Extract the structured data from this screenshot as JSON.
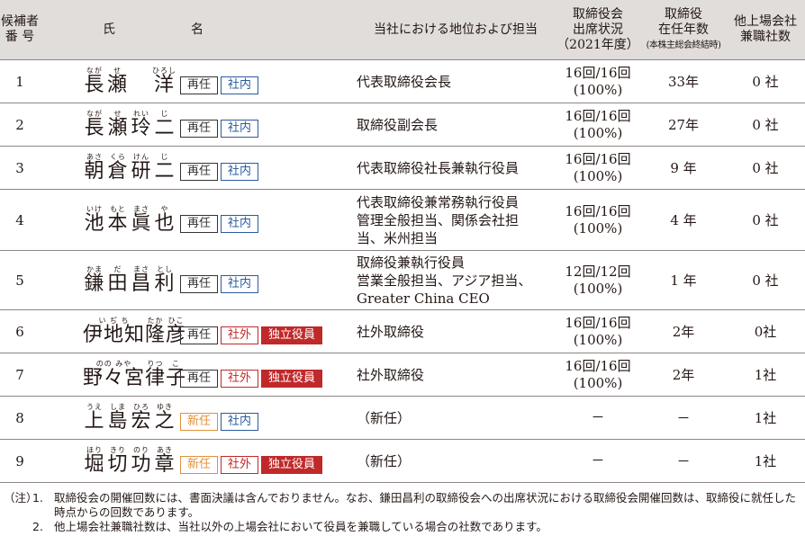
{
  "header": {
    "candidate_no": "候補者\n番 号",
    "name": "氏　　　　　　名",
    "position": "当社における地位および担当",
    "attendance_line1": "取締役会",
    "attendance_line2": "出席状況",
    "attendance_line3": "（2021年度）",
    "tenure_line1": "取締役",
    "tenure_line2": "在任年数",
    "tenure_line3": "(本株主総会終結時)",
    "other_line1": "他上場会社",
    "other_line2": "兼職社数"
  },
  "rows": [
    {
      "no": "1",
      "name": [
        {
          "r": "なが",
          "k": "長"
        },
        {
          "r": "せ",
          "k": "瀬"
        },
        {
          "r": "",
          "k": ""
        },
        {
          "r": "ひろし",
          "k": "洋"
        }
      ],
      "tags": [
        [
          "再任",
          "saigin"
        ],
        [
          "社内",
          "shanai"
        ]
      ],
      "position": "代表取締役会長",
      "att1": "16回/16回",
      "att2": "(100%)",
      "tenure": "33年",
      "other": "0 社"
    },
    {
      "no": "2",
      "name": [
        {
          "r": "なが",
          "k": "長"
        },
        {
          "r": "せ",
          "k": "瀬"
        },
        {
          "r": "れい",
          "k": "玲"
        },
        {
          "r": "じ",
          "k": "二"
        }
      ],
      "tags": [
        [
          "再任",
          "saigin"
        ],
        [
          "社内",
          "shanai"
        ]
      ],
      "position": "取締役副会長",
      "att1": "16回/16回",
      "att2": "(100%)",
      "tenure": "27年",
      "other": "0 社"
    },
    {
      "no": "3",
      "name": [
        {
          "r": "あさ",
          "k": "朝"
        },
        {
          "r": "くら",
          "k": "倉"
        },
        {
          "r": "けん",
          "k": "研"
        },
        {
          "r": "じ",
          "k": "二"
        }
      ],
      "tags": [
        [
          "再任",
          "saigin"
        ],
        [
          "社内",
          "shanai"
        ]
      ],
      "position": "代表取締役社長兼執行役員",
      "att1": "16回/16回",
      "att2": "(100%)",
      "tenure": "9 年",
      "other": "0 社"
    },
    {
      "no": "4",
      "name": [
        {
          "r": "いけ",
          "k": "池"
        },
        {
          "r": "もと",
          "k": "本"
        },
        {
          "r": "まさ",
          "k": "眞"
        },
        {
          "r": "や",
          "k": "也"
        }
      ],
      "tags": [
        [
          "再任",
          "saigin"
        ],
        [
          "社内",
          "shanai"
        ]
      ],
      "position": "代表取締役兼常務執行役員\n管理全般担当、関係会社担\n当、米州担当",
      "att1": "16回/16回",
      "att2": "(100%)",
      "tenure": "4 年",
      "other": "0 社"
    },
    {
      "no": "5",
      "name": [
        {
          "r": "かま",
          "k": "鎌"
        },
        {
          "r": "だ",
          "k": "田"
        },
        {
          "r": "まさ",
          "k": "昌"
        },
        {
          "r": "とし",
          "k": "利"
        }
      ],
      "tags": [
        [
          "再任",
          "saigin"
        ],
        [
          "社内",
          "shanai"
        ]
      ],
      "position": "取締役兼執行役員\n営業全般担当、アジア担当、\nGreater China CEO",
      "att1": "12回/12回",
      "att2": "(100%)",
      "tenure": "1 年",
      "other": "0 社"
    },
    {
      "no": "6",
      "name": [
        {
          "r": "い ぢ ち",
          "k": "伊地知",
          "wide": true
        },
        {
          "r": "たか",
          "k": "隆"
        },
        {
          "r": "ひこ",
          "k": "彦"
        }
      ],
      "tags": [
        [
          "再任",
          "saigin"
        ],
        [
          "社外",
          "shagai"
        ],
        [
          "独立役員",
          "dokuritsu"
        ]
      ],
      "position": "社外取締役",
      "att1": "16回/16回",
      "att2": "(100%)",
      "tenure": "2年",
      "other": "0社"
    },
    {
      "no": "7",
      "name": [
        {
          "r": "のの みや",
          "k": "野々宮",
          "wide": true
        },
        {
          "r": "りつ",
          "k": "律"
        },
        {
          "r": "こ",
          "k": "子"
        }
      ],
      "tags": [
        [
          "再任",
          "saigin"
        ],
        [
          "社外",
          "shagai"
        ],
        [
          "独立役員",
          "dokuritsu"
        ]
      ],
      "position": "社外取締役",
      "att1": "16回/16回",
      "att2": "(100%)",
      "tenure": "2年",
      "other": "1社"
    },
    {
      "no": "8",
      "name": [
        {
          "r": "うえ",
          "k": "上"
        },
        {
          "r": "しま",
          "k": "島"
        },
        {
          "r": "ひろ",
          "k": "宏"
        },
        {
          "r": "ゆき",
          "k": "之"
        }
      ],
      "tags": [
        [
          "新任",
          "shinin"
        ],
        [
          "社内",
          "shanai"
        ]
      ],
      "position": "（新任）",
      "att1": "－",
      "att2": "",
      "tenure": "－",
      "other": "1社"
    },
    {
      "no": "9",
      "name": [
        {
          "r": "ほり",
          "k": "堀"
        },
        {
          "r": "きり",
          "k": "切"
        },
        {
          "r": "のり",
          "k": "功"
        },
        {
          "r": "あき",
          "k": "章"
        }
      ],
      "tags": [
        [
          "新任",
          "shinin"
        ],
        [
          "社外",
          "shagai"
        ],
        [
          "独立役員",
          "dokuritsu"
        ]
      ],
      "position": "（新任）",
      "att1": "－",
      "att2": "",
      "tenure": "－",
      "other": "1社"
    }
  ],
  "notes": {
    "label": "（注）",
    "items": [
      {
        "idx": "1.",
        "text": "取締役会の開催回数には、書面決議は含んでおりません。なお、鎌田昌利の取締役会への出席状況における取締役会開催回数は、取締役に就任した時点からの回数であります。"
      },
      {
        "idx": "2.",
        "text": "他上場会社兼職社数は、当社以外の上場会社において役員を兼職している場合の社数であります。"
      }
    ]
  }
}
